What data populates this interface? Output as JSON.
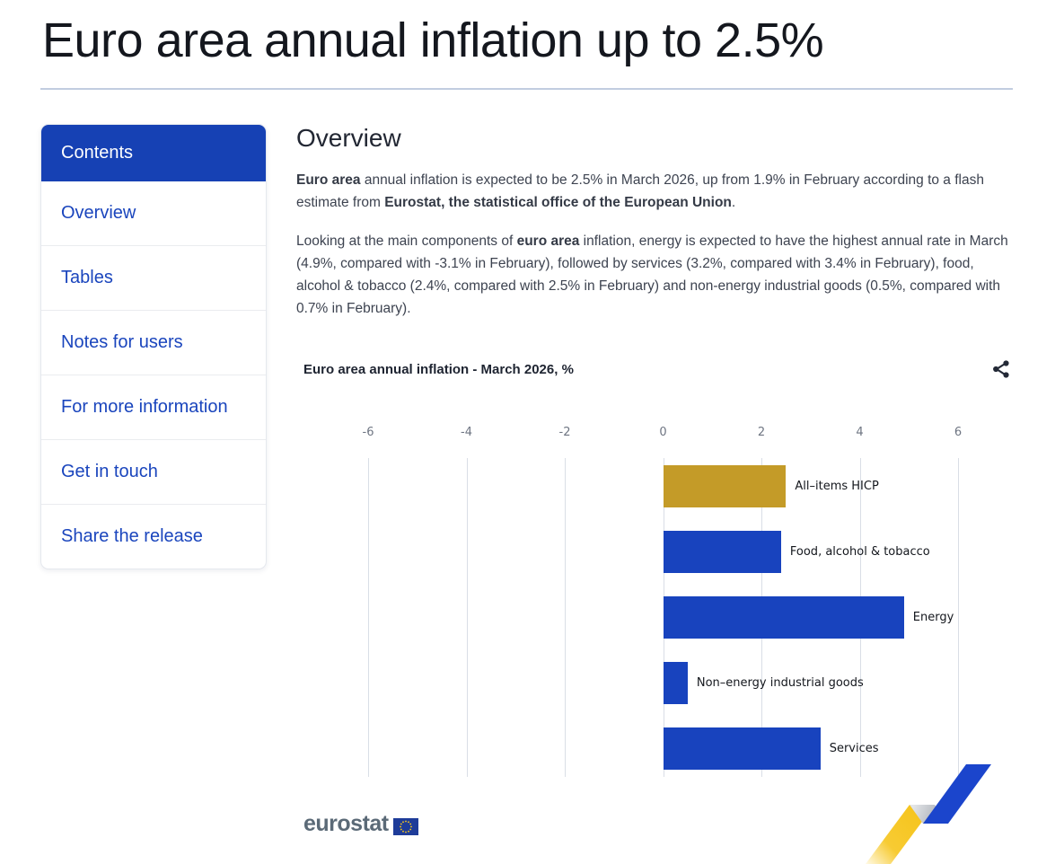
{
  "page": {
    "title": "Euro area annual inflation up to 2.5%"
  },
  "sidebar": {
    "header": "Contents",
    "items": [
      {
        "label": "Overview"
      },
      {
        "label": "Tables"
      },
      {
        "label": "Notes for users"
      },
      {
        "label": "For more information"
      },
      {
        "label": "Get in touch"
      },
      {
        "label": "Share the release"
      }
    ]
  },
  "main": {
    "section_title": "Overview",
    "paragraphs": [
      {
        "segments": [
          {
            "t": "Euro area",
            "b": true
          },
          {
            "t": " annual inflation is expected to be 2.5% in March 2026, up from 1.9% in February according to a flash estimate from ",
            "b": false
          },
          {
            "t": "Eurostat, the statistical office of the European Union",
            "b": true
          },
          {
            "t": ".",
            "b": false
          }
        ]
      },
      {
        "segments": [
          {
            "t": "Looking at the main components of ",
            "b": false
          },
          {
            "t": "euro area",
            "b": true
          },
          {
            "t": " inflation, energy is expected to have the highest annual rate in March (4.9%, compared with -3.1% in February), followed by services (3.2%, compared with 3.4% in February), food, alcohol & tobacco (2.4%, compared with 2.5% in February) and non-energy industrial goods (0.5%, compared with 0.7% in February).",
            "b": false
          }
        ]
      }
    ]
  },
  "chart_data": {
    "type": "bar",
    "orientation": "horizontal",
    "title": "Euro area annual inflation - March 2026, %",
    "categories": [
      "All–items HICP",
      "Food, alcohol & tobacco",
      "Energy",
      "Non–energy industrial goods",
      "Services"
    ],
    "values": [
      2.5,
      2.4,
      4.9,
      0.5,
      3.2
    ],
    "colors": [
      "#C49B28",
      "#1843BE",
      "#1843BE",
      "#1843BE",
      "#1843BE"
    ],
    "xlim": [
      -6,
      6
    ],
    "xticks": [
      -6,
      -4,
      -2,
      0,
      2,
      4,
      6
    ],
    "grid": true,
    "axis_position": "top",
    "bar_label_position": "right"
  },
  "footer": {
    "logo_text": "eurostat"
  },
  "icons": {
    "share": "share-icon",
    "eu_flag": "eu-flag-icon",
    "trend_arrow": "eurostat-trend-arrow-graphic"
  },
  "colors": {
    "accent_blue": "#1843BE",
    "accent_gold": "#C49B28",
    "sidebar_header_bg": "#1641B4",
    "link_blue": "#1A45BD",
    "divider_blue": "#C2CDE0",
    "arrow_yellow": "#F6C318",
    "arrow_blue": "#1B45CC",
    "eu_flag_blue": "#1E3C99",
    "logo_gray": "#5B6A77"
  }
}
